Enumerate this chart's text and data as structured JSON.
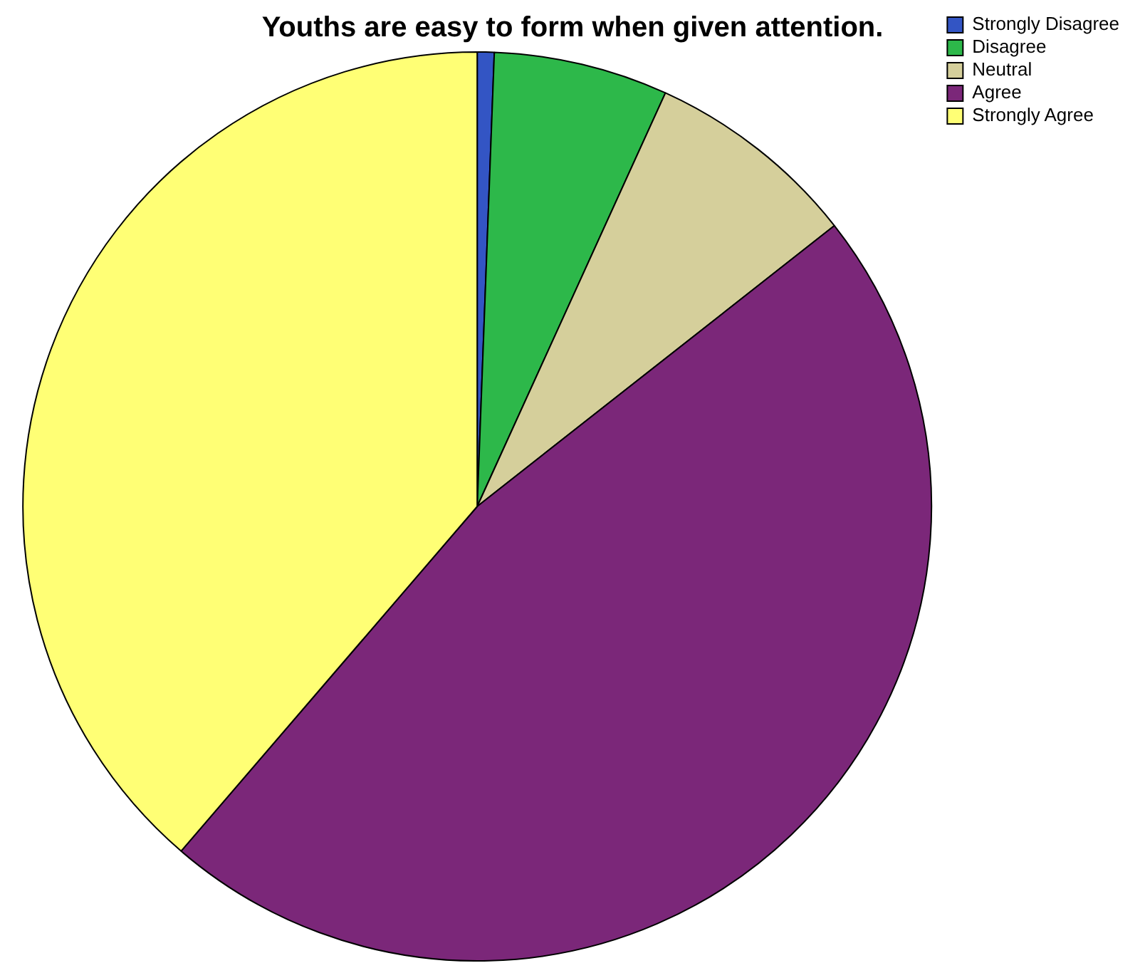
{
  "chart_data": {
    "type": "pie",
    "title": "Youths are easy to form when given attention.",
    "categories": [
      "Strongly Disagree",
      "Disagree",
      "Neutral",
      "Agree",
      "Strongly Agree"
    ],
    "values": [
      0.6,
      6.2,
      7.6,
      46.9,
      38.7
    ],
    "colors": [
      "#3355c4",
      "#2db84a",
      "#d5cf9b",
      "#7b2779",
      "#ffff75"
    ],
    "legend": "top right"
  }
}
